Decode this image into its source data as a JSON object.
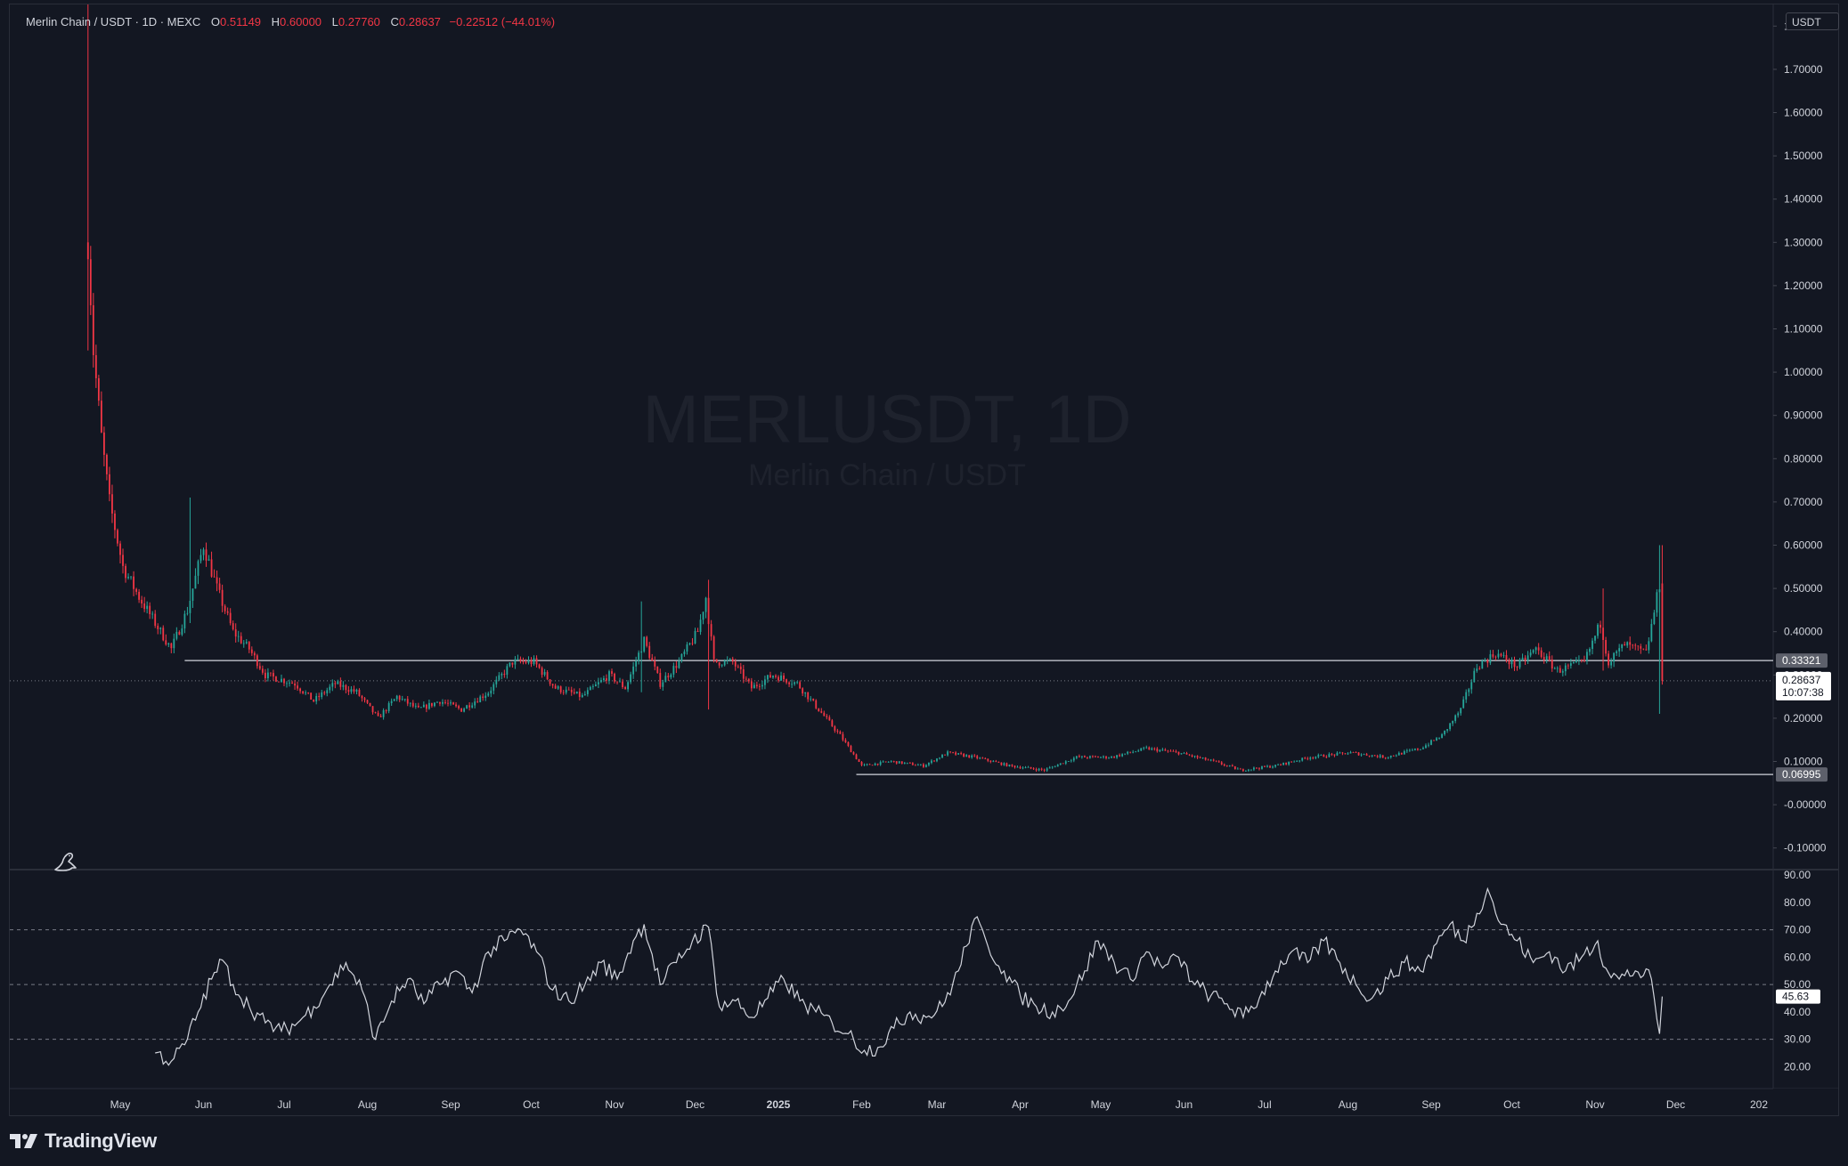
{
  "legend": {
    "symbol": "Merlin Chain / USDT · 1D · MEXC",
    "open_label": "O",
    "open": "0.51149",
    "high_label": "H",
    "high": "0.60000",
    "low_label": "L",
    "low": "0.27760",
    "close_label": "C",
    "close": "0.28637",
    "change": "−0.22512 (−44.01%)"
  },
  "watermark": {
    "title": "MERLUSDT, 1D",
    "subtitle": "Merlin Chain / USDT"
  },
  "currency": "USDT",
  "branding": {
    "name": "TradingView"
  },
  "colors": {
    "up": "#26a69a",
    "down": "#f23645",
    "background": "#131722",
    "line": "#d1d4dc"
  },
  "chart_data": [
    {
      "type": "candlestick",
      "title": "MERLUSDT, 1D",
      "ylim": [
        -0.15,
        1.85
      ],
      "y_ticks": [
        "1.80000",
        "1.70000",
        "1.60000",
        "1.50000",
        "1.40000",
        "1.30000",
        "1.20000",
        "1.10000",
        "1.00000",
        "0.90000",
        "0.80000",
        "0.70000",
        "0.60000",
        "0.50000",
        "0.40000",
        "0.30000",
        "0.20000",
        "0.10000",
        "-0.00000",
        "-0.10000"
      ],
      "y_tick_values": [
        1.8,
        1.7,
        1.6,
        1.5,
        1.4,
        1.3,
        1.2,
        1.1,
        1.0,
        0.9,
        0.8,
        0.7,
        0.6,
        0.5,
        0.4,
        0.3,
        0.2,
        0.1,
        0.0,
        -0.1
      ],
      "x_ticks": [
        "May",
        "Jun",
        "Jul",
        "Aug",
        "Sep",
        "Oct",
        "Nov",
        "Dec",
        "2025",
        "Feb",
        "Mar",
        "Apr",
        "May",
        "Jun",
        "Jul",
        "Aug",
        "Sep",
        "Oct",
        "Nov",
        "Dec",
        "202"
      ],
      "x_tick_dates": [
        "2024-05-01",
        "2024-06-01",
        "2024-07-01",
        "2024-08-01",
        "2024-09-01",
        "2024-10-01",
        "2024-11-01",
        "2024-12-01",
        "2025-01-01",
        "2025-02-01",
        "2025-03-01",
        "2025-04-01",
        "2025-05-01",
        "2025-06-01",
        "2025-07-01",
        "2025-08-01",
        "2025-09-01",
        "2025-10-01",
        "2025-11-01",
        "2025-12-01",
        "2026-01-01"
      ],
      "date_range": [
        "2024-04-19",
        "2025-11-26"
      ],
      "trend_points": [
        [
          "2024-04-19",
          1.3
        ],
        [
          "2024-04-21",
          1.05
        ],
        [
          "2024-04-24",
          0.85
        ],
        [
          "2024-04-27",
          0.7
        ],
        [
          "2024-05-02",
          0.55
        ],
        [
          "2024-05-08",
          0.48
        ],
        [
          "2024-05-14",
          0.42
        ],
        [
          "2024-05-20",
          0.36
        ],
        [
          "2024-05-26",
          0.45
        ],
        [
          "2024-06-01",
          0.6
        ],
        [
          "2024-06-06",
          0.5
        ],
        [
          "2024-06-12",
          0.4
        ],
        [
          "2024-06-18",
          0.36
        ],
        [
          "2024-06-24",
          0.3
        ],
        [
          "2024-07-05",
          0.28
        ],
        [
          "2024-07-12",
          0.24
        ],
        [
          "2024-07-20",
          0.28
        ],
        [
          "2024-07-28",
          0.26
        ],
        [
          "2024-08-05",
          0.2
        ],
        [
          "2024-08-12",
          0.25
        ],
        [
          "2024-08-20",
          0.22
        ],
        [
          "2024-08-28",
          0.24
        ],
        [
          "2024-09-05",
          0.22
        ],
        [
          "2024-09-15",
          0.26
        ],
        [
          "2024-09-24",
          0.33
        ],
        [
          "2024-10-02",
          0.33
        ],
        [
          "2024-10-10",
          0.27
        ],
        [
          "2024-10-20",
          0.25
        ],
        [
          "2024-10-30",
          0.3
        ],
        [
          "2024-11-05",
          0.27
        ],
        [
          "2024-11-12",
          0.38
        ],
        [
          "2024-11-18",
          0.28
        ],
        [
          "2024-11-25",
          0.33
        ],
        [
          "2024-12-02",
          0.4
        ],
        [
          "2024-12-05",
          0.48
        ],
        [
          "2024-12-08",
          0.33
        ],
        [
          "2024-12-15",
          0.33
        ],
        [
          "2024-12-22",
          0.27
        ],
        [
          "2024-12-30",
          0.3
        ],
        [
          "2025-01-08",
          0.28
        ],
        [
          "2025-01-16",
          0.22
        ],
        [
          "2025-01-24",
          0.16
        ],
        [
          "2025-02-01",
          0.09
        ],
        [
          "2025-02-12",
          0.1
        ],
        [
          "2025-02-24",
          0.09
        ],
        [
          "2025-03-05",
          0.12
        ],
        [
          "2025-03-15",
          0.11
        ],
        [
          "2025-03-28",
          0.09
        ],
        [
          "2025-04-10",
          0.08
        ],
        [
          "2025-04-22",
          0.11
        ],
        [
          "2025-05-05",
          0.11
        ],
        [
          "2025-05-18",
          0.13
        ],
        [
          "2025-05-30",
          0.12
        ],
        [
          "2025-06-12",
          0.1
        ],
        [
          "2025-06-22",
          0.08
        ],
        [
          "2025-07-05",
          0.09
        ],
        [
          "2025-07-18",
          0.11
        ],
        [
          "2025-08-02",
          0.12
        ],
        [
          "2025-08-15",
          0.11
        ],
        [
          "2025-08-28",
          0.13
        ],
        [
          "2025-09-05",
          0.16
        ],
        [
          "2025-09-12",
          0.22
        ],
        [
          "2025-09-18",
          0.32
        ],
        [
          "2025-09-25",
          0.35
        ],
        [
          "2025-10-03",
          0.32
        ],
        [
          "2025-10-10",
          0.36
        ],
        [
          "2025-10-18",
          0.31
        ],
        [
          "2025-10-28",
          0.33
        ],
        [
          "2025-11-03",
          0.42
        ],
        [
          "2025-11-06",
          0.33
        ],
        [
          "2025-11-12",
          0.37
        ],
        [
          "2025-11-20",
          0.35
        ],
        [
          "2025-11-25",
          0.51
        ],
        [
          "2025-11-26",
          0.286
        ]
      ],
      "spikes": [
        {
          "date": "2024-04-19",
          "high": 1.85,
          "low": 1.05
        },
        {
          "date": "2024-05-27",
          "high": 0.71,
          "low": 0.42
        },
        {
          "date": "2024-11-11",
          "high": 0.47,
          "low": 0.26
        },
        {
          "date": "2024-12-06",
          "high": 0.52,
          "low": 0.22
        },
        {
          "date": "2025-11-04",
          "high": 0.5,
          "low": 0.31
        },
        {
          "date": "2025-11-25",
          "high": 0.6,
          "low": 0.21
        }
      ],
      "horizontal_levels": [
        {
          "label": "0.33321",
          "value": 0.33321
        },
        {
          "label": "0.06995",
          "value": 0.06995
        }
      ],
      "last_price": {
        "label": "0.28637",
        "value": 0.28637,
        "countdown": "10:07:38"
      }
    },
    {
      "type": "line",
      "ylim": [
        12,
        92
      ],
      "y_ticks": [
        "90.00",
        "80.00",
        "70.00",
        "60.00",
        "50.00",
        "40.00",
        "30.00",
        "20.00"
      ],
      "y_tick_values": [
        90,
        80,
        70,
        60,
        50,
        40,
        30,
        20
      ],
      "bands": [
        70,
        50,
        30
      ],
      "last_value": {
        "label": "45.63",
        "value": 45.63
      },
      "points": [
        [
          "2024-05-14",
          25
        ],
        [
          "2024-05-20",
          22
        ],
        [
          "2024-05-25",
          28
        ],
        [
          "2024-05-30",
          40
        ],
        [
          "2024-06-04",
          52
        ],
        [
          "2024-06-08",
          59
        ],
        [
          "2024-06-12",
          50
        ],
        [
          "2024-06-18",
          42
        ],
        [
          "2024-06-24",
          36
        ],
        [
          "2024-06-30",
          33
        ],
        [
          "2024-07-06",
          36
        ],
        [
          "2024-07-12",
          42
        ],
        [
          "2024-07-18",
          50
        ],
        [
          "2024-07-24",
          58
        ],
        [
          "2024-07-30",
          48
        ],
        [
          "2024-08-04",
          30
        ],
        [
          "2024-08-10",
          44
        ],
        [
          "2024-08-16",
          52
        ],
        [
          "2024-08-22",
          43
        ],
        [
          "2024-08-28",
          50
        ],
        [
          "2024-09-03",
          55
        ],
        [
          "2024-09-09",
          47
        ],
        [
          "2024-09-15",
          62
        ],
        [
          "2024-09-21",
          66
        ],
        [
          "2024-09-27",
          70
        ],
        [
          "2024-10-03",
          62
        ],
        [
          "2024-10-09",
          48
        ],
        [
          "2024-10-15",
          44
        ],
        [
          "2024-10-21",
          50
        ],
        [
          "2024-10-27",
          58
        ],
        [
          "2024-11-02",
          52
        ],
        [
          "2024-11-08",
          66
        ],
        [
          "2024-11-12",
          72
        ],
        [
          "2024-11-18",
          50
        ],
        [
          "2024-11-24",
          58
        ],
        [
          "2024-11-30",
          66
        ],
        [
          "2024-12-06",
          71
        ],
        [
          "2024-12-10",
          42
        ],
        [
          "2024-12-16",
          44
        ],
        [
          "2024-12-22",
          38
        ],
        [
          "2024-12-28",
          45
        ],
        [
          "2025-01-03",
          52
        ],
        [
          "2025-01-09",
          44
        ],
        [
          "2025-01-15",
          40
        ],
        [
          "2025-01-21",
          36
        ],
        [
          "2025-01-27",
          32
        ],
        [
          "2025-02-02",
          26
        ],
        [
          "2025-02-07",
          27
        ],
        [
          "2025-02-13",
          34
        ],
        [
          "2025-02-19",
          40
        ],
        [
          "2025-02-25",
          38
        ],
        [
          "2025-03-03",
          42
        ],
        [
          "2025-03-09",
          55
        ],
        [
          "2025-03-15",
          74
        ],
        [
          "2025-03-20",
          64
        ],
        [
          "2025-03-26",
          55
        ],
        [
          "2025-04-01",
          46
        ],
        [
          "2025-04-07",
          42
        ],
        [
          "2025-04-13",
          40
        ],
        [
          "2025-04-19",
          44
        ],
        [
          "2025-04-25",
          55
        ],
        [
          "2025-04-30",
          66
        ],
        [
          "2025-05-06",
          58
        ],
        [
          "2025-05-12",
          52
        ],
        [
          "2025-05-18",
          62
        ],
        [
          "2025-05-24",
          56
        ],
        [
          "2025-05-30",
          60
        ],
        [
          "2025-06-05",
          50
        ],
        [
          "2025-06-11",
          46
        ],
        [
          "2025-06-17",
          43
        ],
        [
          "2025-06-23",
          38
        ],
        [
          "2025-06-29",
          45
        ],
        [
          "2025-07-05",
          55
        ],
        [
          "2025-07-11",
          62
        ],
        [
          "2025-07-17",
          58
        ],
        [
          "2025-07-23",
          66
        ],
        [
          "2025-07-29",
          58
        ],
        [
          "2025-08-04",
          50
        ],
        [
          "2025-08-10",
          45
        ],
        [
          "2025-08-16",
          52
        ],
        [
          "2025-08-22",
          58
        ],
        [
          "2025-08-28",
          55
        ],
        [
          "2025-09-03",
          65
        ],
        [
          "2025-09-08",
          72
        ],
        [
          "2025-09-13",
          66
        ],
        [
          "2025-09-18",
          76
        ],
        [
          "2025-09-22",
          85
        ],
        [
          "2025-09-27",
          72
        ],
        [
          "2025-10-03",
          66
        ],
        [
          "2025-10-09",
          58
        ],
        [
          "2025-10-15",
          62
        ],
        [
          "2025-10-21",
          55
        ],
        [
          "2025-10-27",
          60
        ],
        [
          "2025-11-02",
          66
        ],
        [
          "2025-11-05",
          56
        ],
        [
          "2025-11-10",
          52
        ],
        [
          "2025-11-16",
          55
        ],
        [
          "2025-11-22",
          52
        ],
        [
          "2025-11-25",
          32
        ],
        [
          "2025-11-26",
          45.63
        ]
      ]
    }
  ]
}
